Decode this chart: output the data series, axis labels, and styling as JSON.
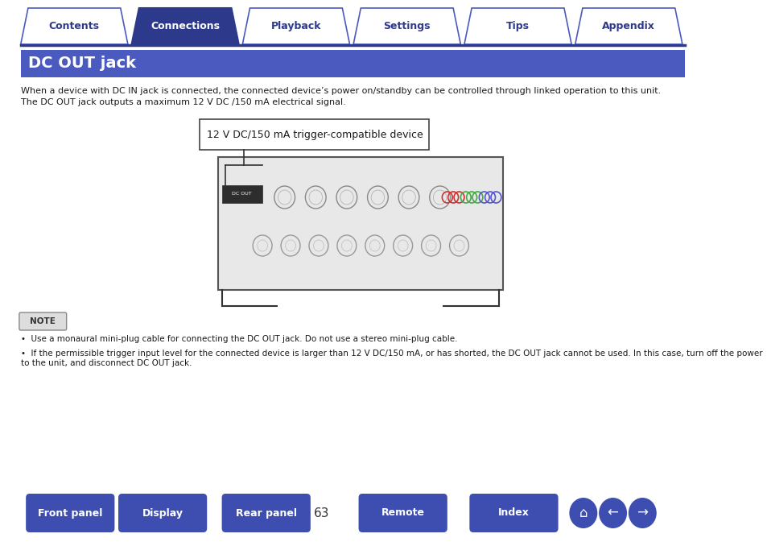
{
  "bg_color": "#ffffff",
  "nav_tabs": [
    "Contents",
    "Connections",
    "Playback",
    "Settings",
    "Tips",
    "Appendix"
  ],
  "nav_active": 1,
  "nav_color_active": "#2d3a8c",
  "nav_color_inactive": "#ffffff",
  "nav_text_color_active": "#ffffff",
  "nav_text_color_inactive": "#2d3a8c",
  "nav_border_color": "#4a5abf",
  "nav_line_color": "#2d3a8c",
  "section_title": "DC OUT jack",
  "section_bg": "#4a5abf",
  "section_text_color": "#ffffff",
  "body_text1": "When a device with DC IN jack is connected, the connected device’s power on/standby can be controlled through linked operation to this unit.",
  "body_text2": "The DC OUT jack outputs a maximum 12 V DC /150 mA electrical signal.",
  "device_label": "12 V DC/150 mA trigger-compatible device",
  "note_label": "NOTE",
  "note_bullet1": "Use a monaural mini-plug cable for connecting the DC OUT jack. Do not use a stereo mini-plug cable.",
  "note_bullet2": "If the permissible trigger input level for the connected device is larger than 12 V DC/150 mA, or has shorted, the DC OUT jack cannot be used. In this case, turn off the power\nto the unit, and disconnect DC OUT jack.",
  "bottom_buttons": [
    "Front panel",
    "Display",
    "Rear panel",
    "Remote",
    "Index"
  ],
  "page_number": "63",
  "bottom_btn_color": "#3d4eb0",
  "bottom_btn_text": "#ffffff"
}
